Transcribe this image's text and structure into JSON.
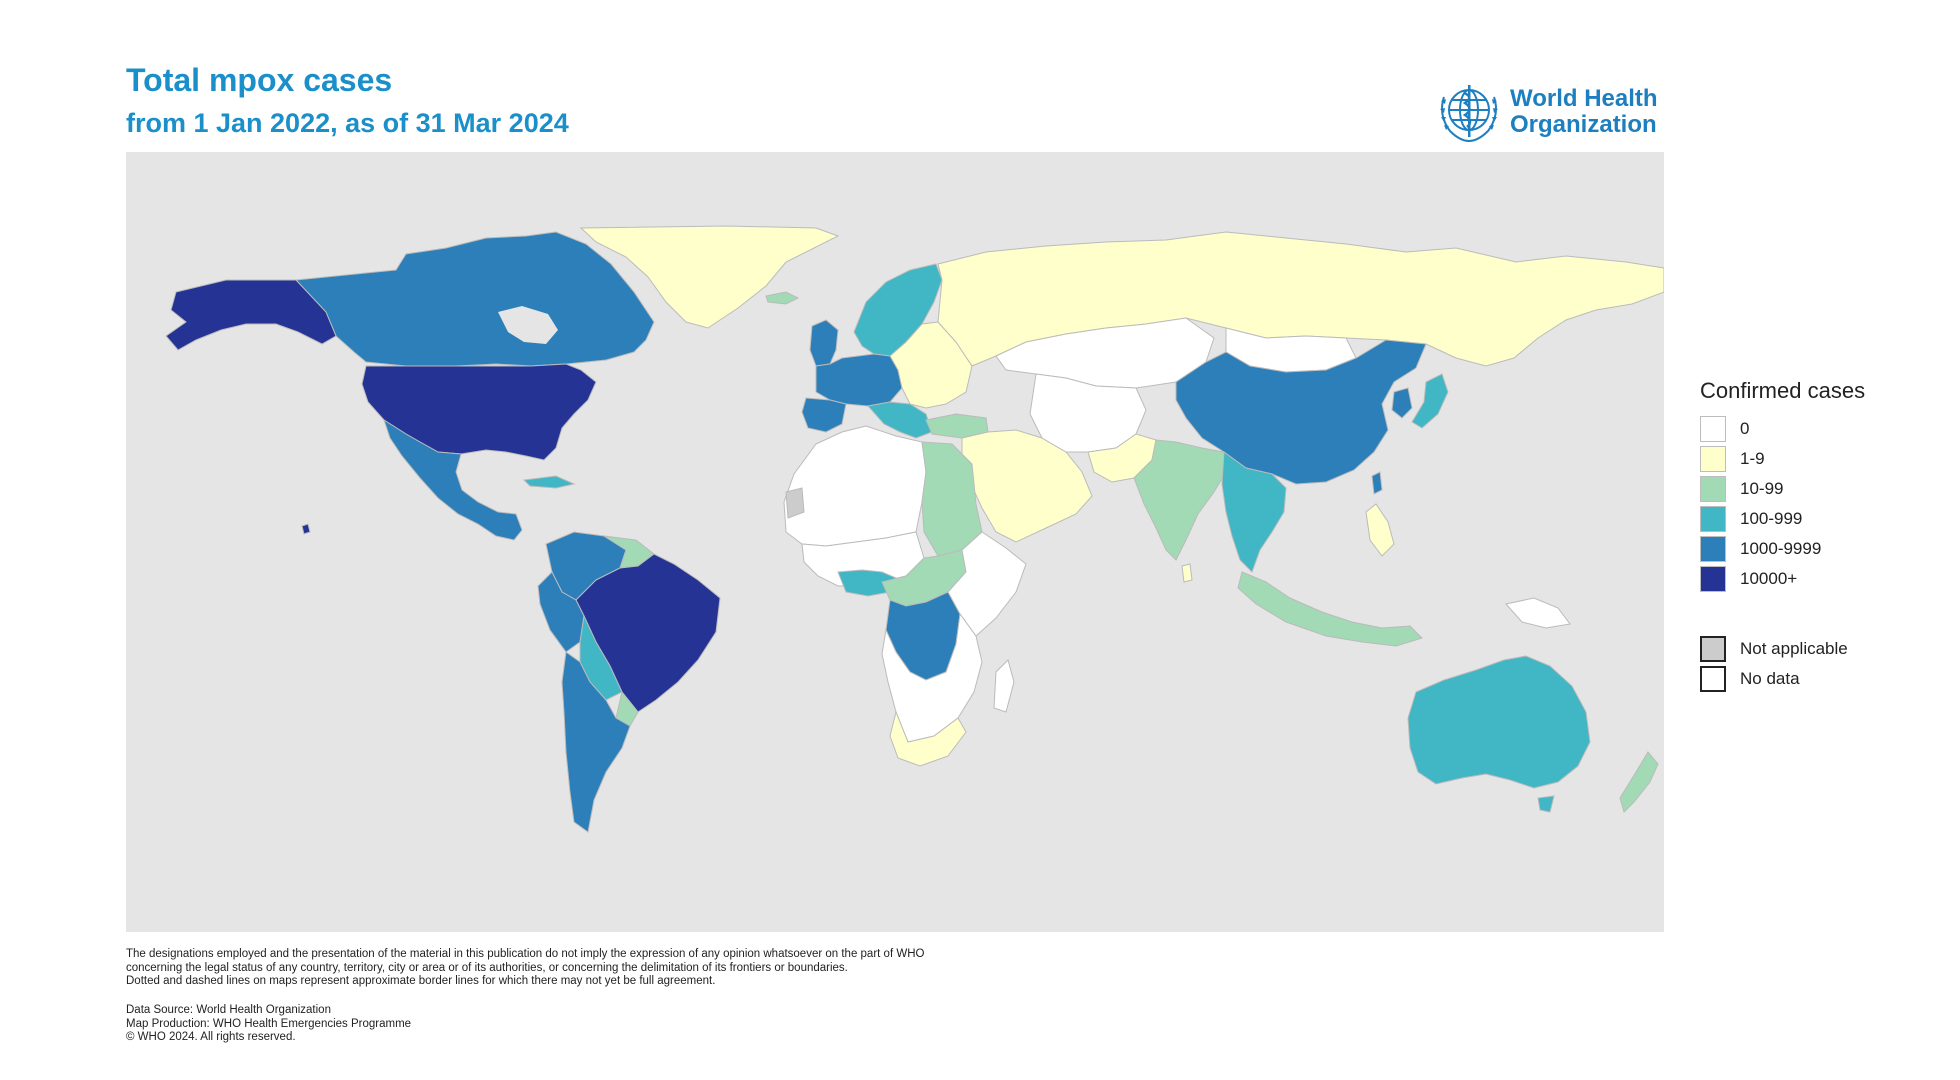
{
  "header": {
    "title": "Total mpox cases",
    "subtitle": "from 1 Jan 2022, as of 31 Mar 2024"
  },
  "logo": {
    "line1": "World Health",
    "line2": "Organization",
    "icon": "who-emblem-icon",
    "color": "#1d7fc0"
  },
  "colors": {
    "ocean": "#e5e5e5",
    "c0": "#ffffff",
    "c1_9": "#ffffcc",
    "c10_99": "#a1dab4",
    "c100_999": "#41b6c4",
    "c1000_9999": "#2c7fb8",
    "c10000_plus": "#253494",
    "not_applicable": "#cccccc",
    "no_data": "#ffffff"
  },
  "legend": {
    "title": "Confirmed cases",
    "items": [
      {
        "label": "0",
        "color": "#ffffff"
      },
      {
        "label": "1-9",
        "color": "#ffffcc"
      },
      {
        "label": "10-99",
        "color": "#a1dab4"
      },
      {
        "label": "100-999",
        "color": "#41b6c4"
      },
      {
        "label": "1000-9999",
        "color": "#2c7fb8"
      },
      {
        "label": "10000+",
        "color": "#253494"
      }
    ],
    "extra": [
      {
        "label": "Not applicable",
        "color": "#cccccc"
      },
      {
        "label": "No data",
        "color": "#ffffff"
      }
    ]
  },
  "disclaimer": [
    "The designations employed and the presentation of the material in this publication do not imply the expression of any opinion whatsoever on the part of WHO",
    "concerning the legal status of any country, territory, city or area or of its authorities, or concerning the delimitation of its frontiers or boundaries.",
    "Dotted and dashed lines on maps represent approximate border lines for which there may not yet be full agreement."
  ],
  "credits": [
    "Data Source: World Health Organization",
    "Map Production: WHO Health Emergencies Programme",
    "© WHO 2024. All rights reserved."
  ]
}
